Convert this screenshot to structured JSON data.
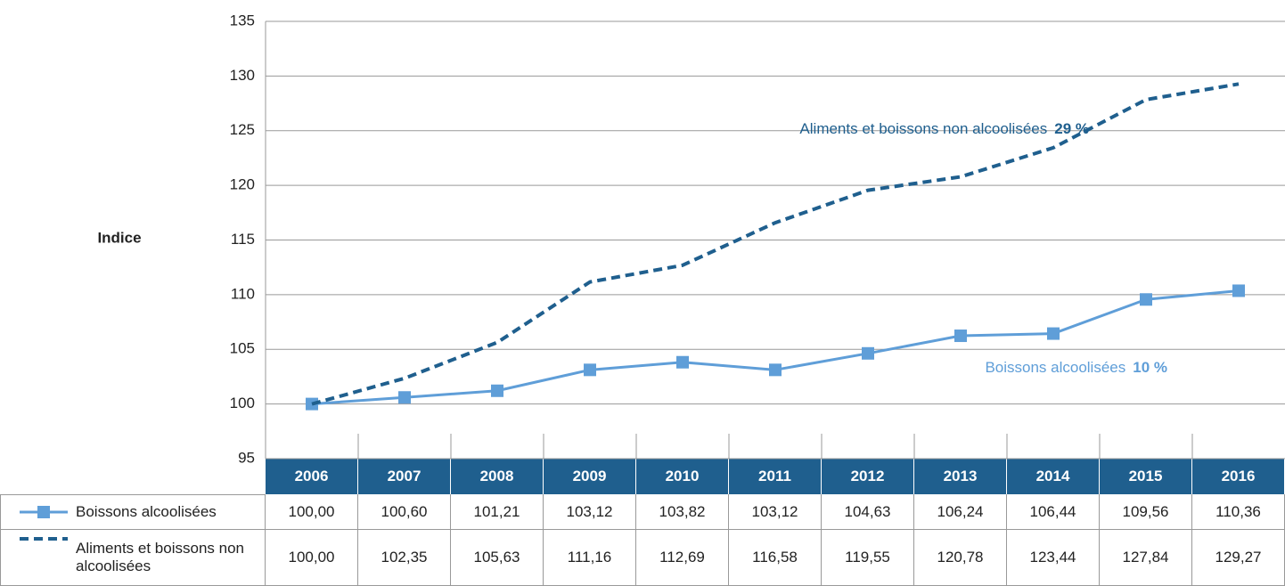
{
  "chart_data": {
    "type": "line",
    "y_label": "Indice",
    "categories": [
      "2006",
      "2007",
      "2008",
      "2009",
      "2010",
      "2011",
      "2012",
      "2013",
      "2014",
      "2015",
      "2016"
    ],
    "series": [
      {
        "name": "Boissons alcoolisées",
        "color": "#5f9ed8",
        "marker": "square",
        "dashed": false,
        "values": [
          100.0,
          100.6,
          101.21,
          103.12,
          103.82,
          103.12,
          104.63,
          106.24,
          106.44,
          109.56,
          110.36
        ],
        "value_labels": [
          "100,00",
          "100,60",
          "101,21",
          "103,12",
          "103,82",
          "103,12",
          "104,63",
          "106,24",
          "106,44",
          "109,56",
          "110,36"
        ]
      },
      {
        "name": "Aliments et boissons non alcoolisées",
        "color": "#1f5f8e",
        "marker": "none",
        "dashed": true,
        "values": [
          100.0,
          102.35,
          105.63,
          111.16,
          112.69,
          116.58,
          119.55,
          120.78,
          123.44,
          127.84,
          129.27
        ],
        "value_labels": [
          "100,00",
          "102,35",
          "105,63",
          "111,16",
          "112,69",
          "116,58",
          "119,55",
          "120,78",
          "123,44",
          "127,84",
          "129,27"
        ]
      }
    ],
    "annotations": [
      {
        "text": "Aliments et boissons non alcoolisées",
        "highlight": "29 %",
        "series": 1
      },
      {
        "text": "Boissons alcoolisées",
        "highlight": "10 %",
        "series": 0
      }
    ],
    "ylim": [
      95,
      135
    ],
    "yticks": [
      95,
      100,
      105,
      110,
      115,
      120,
      125,
      130,
      135
    ],
    "grid": true,
    "header_color": "#1f5f8e"
  }
}
